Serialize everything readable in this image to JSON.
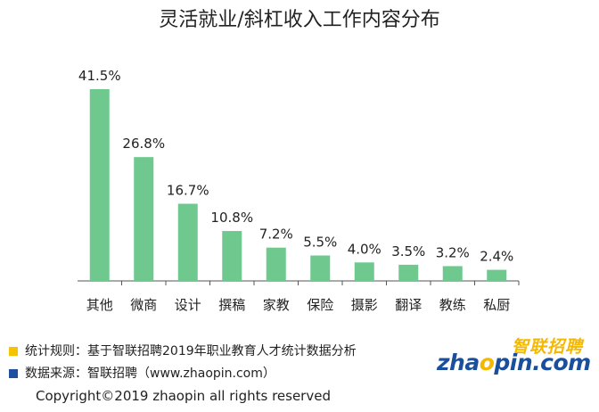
{
  "chart_data": {
    "type": "bar",
    "title": "灵活就业/斜杠收入工作内容分布",
    "categories": [
      "其他",
      "微商",
      "设计",
      "撰稿",
      "家教",
      "保险",
      "摄影",
      "翻译",
      "教练",
      "私厨"
    ],
    "values": [
      41.5,
      26.8,
      16.7,
      10.8,
      7.2,
      5.5,
      4.0,
      3.5,
      3.2,
      2.4
    ],
    "value_labels": [
      "41.5%",
      "26.8%",
      "16.7%",
      "10.8%",
      "7.2%",
      "5.5%",
      "4.0%",
      "3.5%",
      "3.2%",
      "2.4%"
    ],
    "ylim": [
      0,
      41.5
    ],
    "bar_color": "#6fc98f",
    "grid": false
  },
  "footer": {
    "rule_text": "统计规则：基于智联招聘2019年职业教育人才统计数据分析",
    "rule_marker_color": "#f5c400",
    "source_text": "数据来源：智联招聘（www.zhaopin.com）",
    "source_marker_color": "#1f4fa0",
    "copyright": "Copyright©2019 zhaopin all rights reserved"
  },
  "logo": {
    "cn": "智联招聘",
    "en_prefix": "zha",
    "en_o": "o",
    "en_suffix": "pin.com"
  }
}
